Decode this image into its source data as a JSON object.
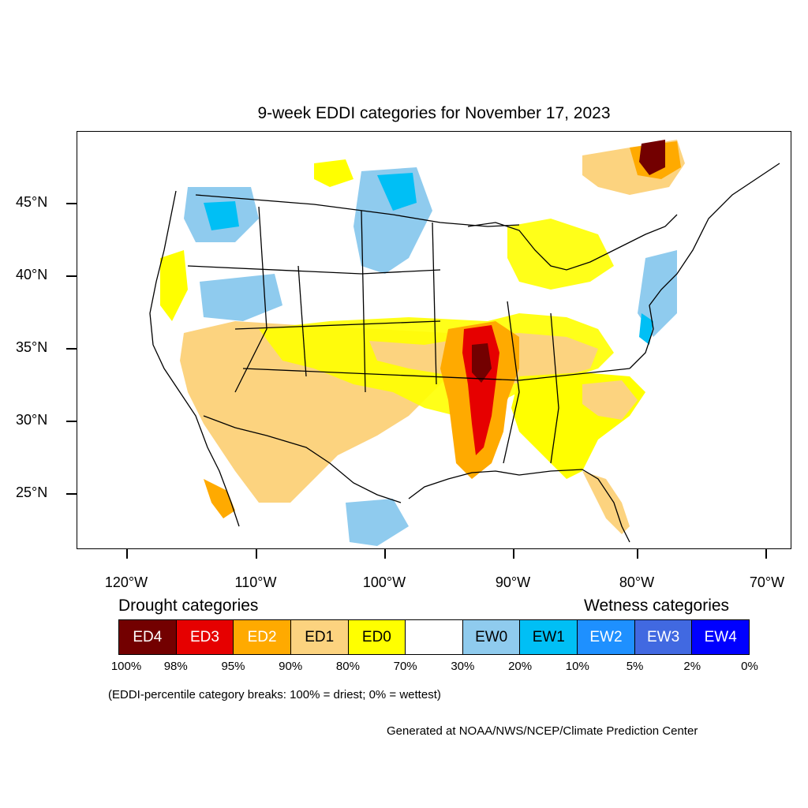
{
  "title": "9-week EDDI categories for November 17, 2023",
  "axes": {
    "lat_labels": [
      "45°N",
      "40°N",
      "35°N",
      "30°N",
      "25°N"
    ],
    "lon_labels": [
      "120°W",
      "110°W",
      "100°W",
      "90°W",
      "80°W",
      "70°W"
    ]
  },
  "legend": {
    "drought_heading": "Drought categories",
    "wetness_heading": "Wetness categories",
    "categories": [
      {
        "label": "ED4",
        "color": "#730000",
        "text_color": "#ffffff"
      },
      {
        "label": "ED3",
        "color": "#e60000",
        "text_color": "#ffffff"
      },
      {
        "label": "ED2",
        "color": "#ffaa00",
        "text_color": "#ffffff"
      },
      {
        "label": "ED1",
        "color": "#fcd37f",
        "text_color": "#000000"
      },
      {
        "label": "ED0",
        "color": "#ffff00",
        "text_color": "#000000"
      },
      {
        "label": "",
        "color": "#ffffff",
        "text_color": "#000000"
      },
      {
        "label": "EW0",
        "color": "#8fcbee",
        "text_color": "#000000"
      },
      {
        "label": "EW1",
        "color": "#00bff5",
        "text_color": "#000000"
      },
      {
        "label": "EW2",
        "color": "#1e90ff",
        "text_color": "#ffffff"
      },
      {
        "label": "EW3",
        "color": "#4169e1",
        "text_color": "#ffffff"
      },
      {
        "label": "EW4",
        "color": "#0000ff",
        "text_color": "#ffffff"
      }
    ],
    "breaks": [
      "100%",
      "98%",
      "95%",
      "90%",
      "80%",
      "70%",
      "30%",
      "20%",
      "10%",
      "5%",
      "2%",
      "0%"
    ]
  },
  "note": "(EDDI-percentile category breaks: 100% = driest; 0% = wettest)",
  "credit": "Generated at NOAA/NWS/NCEP/Climate Prediction Center"
}
